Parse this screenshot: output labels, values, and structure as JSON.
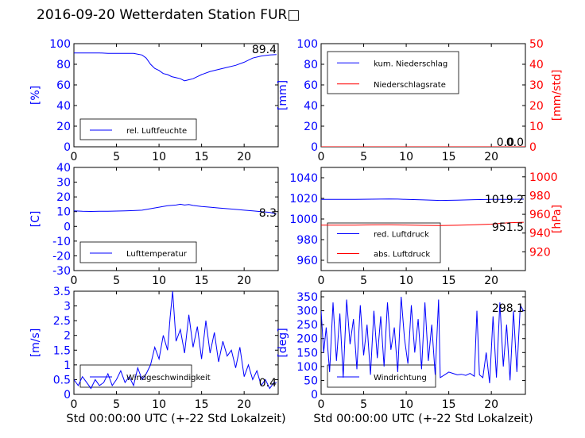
{
  "title": "2016-09-20 Wetterdaten Station FUR□",
  "colors": {
    "primary": "#0000ff",
    "secondary": "#ff0000",
    "tertiary": "#8080ff"
  },
  "chart_data": [
    {
      "type": "line",
      "ylabel": "[%]",
      "xlim": [
        0,
        24
      ],
      "ylim": [
        0,
        100
      ],
      "xticks": [
        0,
        5,
        10,
        15,
        20
      ],
      "yticks": [
        0,
        20,
        40,
        60,
        80,
        100
      ],
      "latest": "89.4",
      "legend": "bottom-left",
      "series": [
        {
          "name": "rel. Luftfeuchte",
          "color": "#0000ff",
          "x": [
            0,
            1,
            2,
            3,
            4,
            5,
            6,
            7,
            8,
            8.5,
            9,
            9.5,
            10,
            10.5,
            11,
            11.5,
            12,
            12.5,
            13,
            13.5,
            14,
            14.5,
            15,
            16,
            17,
            18,
            19,
            20,
            21,
            22,
            23,
            23.8
          ],
          "y": [
            91,
            91,
            91,
            91,
            90.5,
            90.5,
            90.5,
            90.5,
            89,
            86,
            80,
            76,
            74,
            71,
            70,
            68,
            67,
            66,
            64,
            65,
            66,
            68,
            70,
            73,
            75,
            77,
            79,
            82,
            86,
            88,
            89,
            89.4
          ]
        }
      ]
    },
    {
      "type": "line",
      "ylabel": "[mm]",
      "ylabel_right": "[mm/std]",
      "xlim": [
        0,
        24
      ],
      "ylim": [
        0,
        100
      ],
      "ylim_right": [
        0,
        50
      ],
      "xticks": [
        0,
        5,
        10,
        15,
        20
      ],
      "yticks": [
        0,
        20,
        40,
        60,
        80,
        100
      ],
      "yticks_right": [
        0,
        10,
        20,
        30,
        40,
        50
      ],
      "latest": [
        "0.0",
        "0.0"
      ],
      "legend": "top-left",
      "series": [
        {
          "name": "kum. Niederschlag",
          "color": "#0000ff",
          "x": [
            0,
            24
          ],
          "y": [
            0,
            0
          ]
        },
        {
          "name": "Niederschlagsrate",
          "color": "#ff0000",
          "axis": "right",
          "x": [
            0,
            24
          ],
          "y": [
            0,
            0
          ]
        }
      ]
    },
    {
      "type": "line",
      "ylabel": "[C]",
      "xlim": [
        0,
        24
      ],
      "ylim": [
        -30,
        40
      ],
      "xticks": [
        0,
        5,
        10,
        15,
        20
      ],
      "yticks": [
        -30,
        -20,
        -10,
        0,
        10,
        20,
        30,
        40
      ],
      "latest": "8.3",
      "legend": "bottom-left",
      "series": [
        {
          "name": "Lufttemperatur",
          "color": "#0000ff",
          "x": [
            0,
            1,
            2,
            3,
            4,
            5,
            6,
            7,
            8,
            9,
            10,
            11,
            12,
            12.5,
            13,
            13.5,
            14,
            15,
            16,
            17,
            18,
            19,
            20,
            21,
            22,
            23,
            23.8
          ],
          "y": [
            10.5,
            10.2,
            10.1,
            10.2,
            10.3,
            10.4,
            10.5,
            10.7,
            11,
            12,
            13,
            14,
            14.5,
            15,
            14.5,
            14.8,
            14.2,
            13.5,
            13,
            12.5,
            12,
            11.5,
            11,
            10.5,
            10,
            9.5,
            8.3
          ]
        }
      ]
    },
    {
      "type": "line",
      "ylabel": "",
      "ylabel_right": "[hPa]",
      "xlim": [
        0,
        24
      ],
      "ylim": [
        950,
        1050
      ],
      "ylim_right": [
        900,
        1010
      ],
      "xticks": [
        0,
        5,
        10,
        15,
        20
      ],
      "yticks": [
        960,
        980,
        1000,
        1020,
        1040
      ],
      "yticks_right": [
        920,
        940,
        960,
        980,
        1000
      ],
      "latest": [
        "1019.2",
        "951.5"
      ],
      "legend": "bottom-left",
      "series": [
        {
          "name": "red. Luftdruck",
          "color": "#0000ff",
          "x": [
            0,
            2,
            4,
            6,
            8,
            9,
            10,
            12,
            14,
            16,
            18,
            20,
            22,
            23.8
          ],
          "y": [
            1019,
            1019,
            1019,
            1019.2,
            1019.5,
            1019.3,
            1019,
            1018.5,
            1018,
            1018.3,
            1018.8,
            1019,
            1019.1,
            1019.2
          ]
        },
        {
          "name": "abs. Luftdruck",
          "color": "#ff0000",
          "axis": "right",
          "x": [
            0,
            2,
            4,
            6,
            8,
            10,
            12,
            14,
            16,
            18,
            20,
            22,
            23.8
          ],
          "y": [
            948.5,
            948.5,
            948.5,
            948.7,
            948.8,
            948.6,
            948.2,
            948,
            948.3,
            948.8,
            949.5,
            951,
            951.5
          ]
        }
      ]
    },
    {
      "type": "line",
      "ylabel": "[m/s]",
      "xlabel": "Std 00:00:00 UTC (+-22 Std Lokalzeit)",
      "xlim": [
        0,
        24
      ],
      "ylim": [
        0,
        3.5
      ],
      "xticks": [
        0,
        5,
        10,
        15,
        20
      ],
      "yticks": [
        0,
        0.5,
        1.0,
        1.5,
        2.0,
        2.5,
        3.0,
        3.5
      ],
      "latest": "0.4",
      "legend": "bottom-left",
      "series": [
        {
          "name": "Windgeschwindigkeit",
          "color": "#0000ff",
          "x": [
            0,
            0.5,
            1,
            1.5,
            2,
            2.5,
            3,
            3.5,
            4,
            4.5,
            5,
            5.5,
            6,
            6.5,
            7,
            7.5,
            8,
            8.5,
            9,
            9.5,
            10,
            10.5,
            11,
            11.3,
            11.6,
            12,
            12.5,
            13,
            13.5,
            14,
            14.5,
            15,
            15.5,
            16,
            16.5,
            17,
            17.5,
            18,
            18.5,
            19,
            19.5,
            20,
            20.5,
            21,
            21.5,
            22,
            22.5,
            23,
            23.5,
            23.8
          ],
          "y": [
            0.5,
            0.3,
            0.6,
            0.4,
            0.2,
            0.5,
            0.3,
            0.4,
            0.7,
            0.3,
            0.5,
            0.8,
            0.4,
            0.6,
            0.3,
            0.9,
            0.5,
            0.7,
            1.0,
            1.6,
            1.2,
            2.0,
            1.5,
            2.6,
            3.5,
            1.8,
            2.2,
            1.4,
            2.7,
            1.6,
            2.3,
            1.2,
            2.5,
            1.4,
            2.1,
            1.1,
            1.8,
            1.3,
            1.5,
            0.9,
            1.6,
            0.6,
            1.0,
            0.5,
            0.8,
            0.3,
            0.5,
            0.2,
            0.4,
            0.4
          ]
        }
      ]
    },
    {
      "type": "line",
      "ylabel": "[deg]",
      "xlabel": "Std 00:00:00 UTC (+-22 Std Lokalzeit)",
      "xlim": [
        0,
        24
      ],
      "ylim": [
        0,
        370
      ],
      "xticks": [
        0,
        5,
        10,
        15,
        20
      ],
      "yticks": [
        0,
        50,
        100,
        150,
        200,
        250,
        300,
        350
      ],
      "latest": "298.1",
      "legend": "bottom-left",
      "series": [
        {
          "name": "Windrichtung",
          "color": "#0000ff",
          "x": [
            0,
            0.3,
            0.6,
            1,
            1.4,
            1.8,
            2.2,
            2.6,
            3,
            3.4,
            3.8,
            4.2,
            4.6,
            5,
            5.4,
            5.8,
            6.2,
            6.6,
            7,
            7.4,
            7.8,
            8.2,
            8.6,
            9,
            9.4,
            9.8,
            10.2,
            10.6,
            11,
            11.4,
            11.8,
            12.2,
            12.6,
            13,
            13.4,
            13.8,
            14,
            14.5,
            15,
            15.5,
            16,
            16.5,
            17,
            17.5,
            18,
            18.3,
            18.6,
            19,
            19.4,
            19.8,
            20.2,
            20.6,
            21,
            21.4,
            21.8,
            22.2,
            22.6,
            23,
            23.4,
            23.8
          ],
          "y": [
            300,
            150,
            240,
            80,
            330,
            120,
            290,
            60,
            340,
            180,
            270,
            90,
            320,
            140,
            250,
            70,
            300,
            130,
            280,
            100,
            330,
            160,
            240,
            80,
            350,
            200,
            110,
            320,
            150,
            270,
            90,
            330,
            120,
            250,
            70,
            340,
            60,
            70,
            80,
            75,
            70,
            72,
            68,
            75,
            65,
            300,
            70,
            60,
            150,
            40,
            280,
            60,
            330,
            100,
            250,
            50,
            300,
            80,
            320,
            298
          ]
        }
      ]
    }
  ]
}
